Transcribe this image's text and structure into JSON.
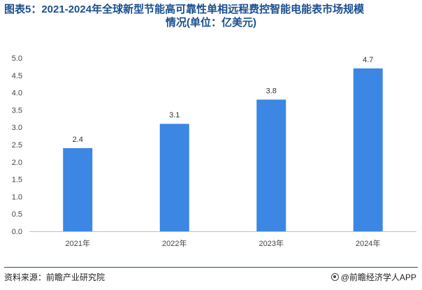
{
  "title_line1": "图表5：2021-2024年全球新型节能高可靠性单相远程费控智能电能表市场规模",
  "title_line2": "情况(单位：亿美元)",
  "source": "资料来源：前瞻产业研究院",
  "brand": "@前瞻经济学人APP",
  "colors": {
    "bar": "#3b87e3",
    "title": "#1a4f8f",
    "axis": "#bfbfbf"
  },
  "chart_data": {
    "type": "bar",
    "categories": [
      "2021年",
      "2022年",
      "2023年",
      "2024年"
    ],
    "series": [
      {
        "values": [
          2.4,
          3.1,
          3.8,
          4.7
        ]
      }
    ],
    "data_labels": [
      "2.4",
      "3.1",
      "3.8",
      "4.7"
    ],
    "ylim": [
      0,
      5
    ],
    "yticks": [
      "0.0",
      "0.5",
      "1.0",
      "1.5",
      "2.0",
      "2.5",
      "3.0",
      "3.5",
      "4.0",
      "4.5",
      "5.0"
    ],
    "grid": false,
    "legend": "none"
  }
}
